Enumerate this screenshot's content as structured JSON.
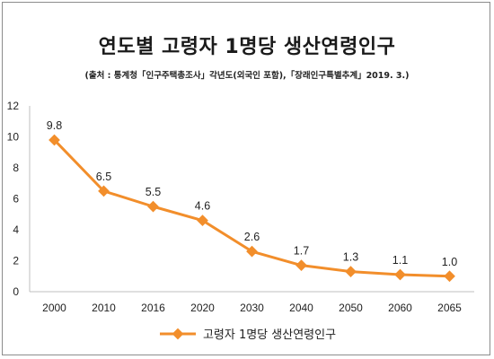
{
  "header": {
    "title": "연도별 고령자 1명당 생산연령인구",
    "source": "(출처 : 통계청「인구주택총조사」각년도(외국인 포함),「장래인구특별추계」2019. 3.)"
  },
  "colors": {
    "series": "#f28e2b",
    "axis": "#bfbfbf"
  },
  "chart_data": {
    "type": "line",
    "title": "연도별 고령자 1명당 생산연령인구",
    "categories": [
      "2000",
      "2010",
      "2016",
      "2020",
      "2030",
      "2040",
      "2050",
      "2060",
      "2065"
    ],
    "series": [
      {
        "name": "고령자 1명당 생산연령인구",
        "values": [
          9.8,
          6.5,
          5.5,
          4.6,
          2.6,
          1.7,
          1.3,
          1.1,
          1.0
        ],
        "labels": [
          "9.8",
          "6.5",
          "5.5",
          "4.6",
          "2.6",
          "1.7",
          "1.3",
          "1.1",
          "1.0"
        ]
      }
    ],
    "yticks": [
      "0",
      "2",
      "4",
      "6",
      "8",
      "10",
      "12"
    ],
    "ylim": [
      0,
      12
    ],
    "grid": false,
    "legend": "bottom",
    "xlabel": "",
    "ylabel": ""
  }
}
